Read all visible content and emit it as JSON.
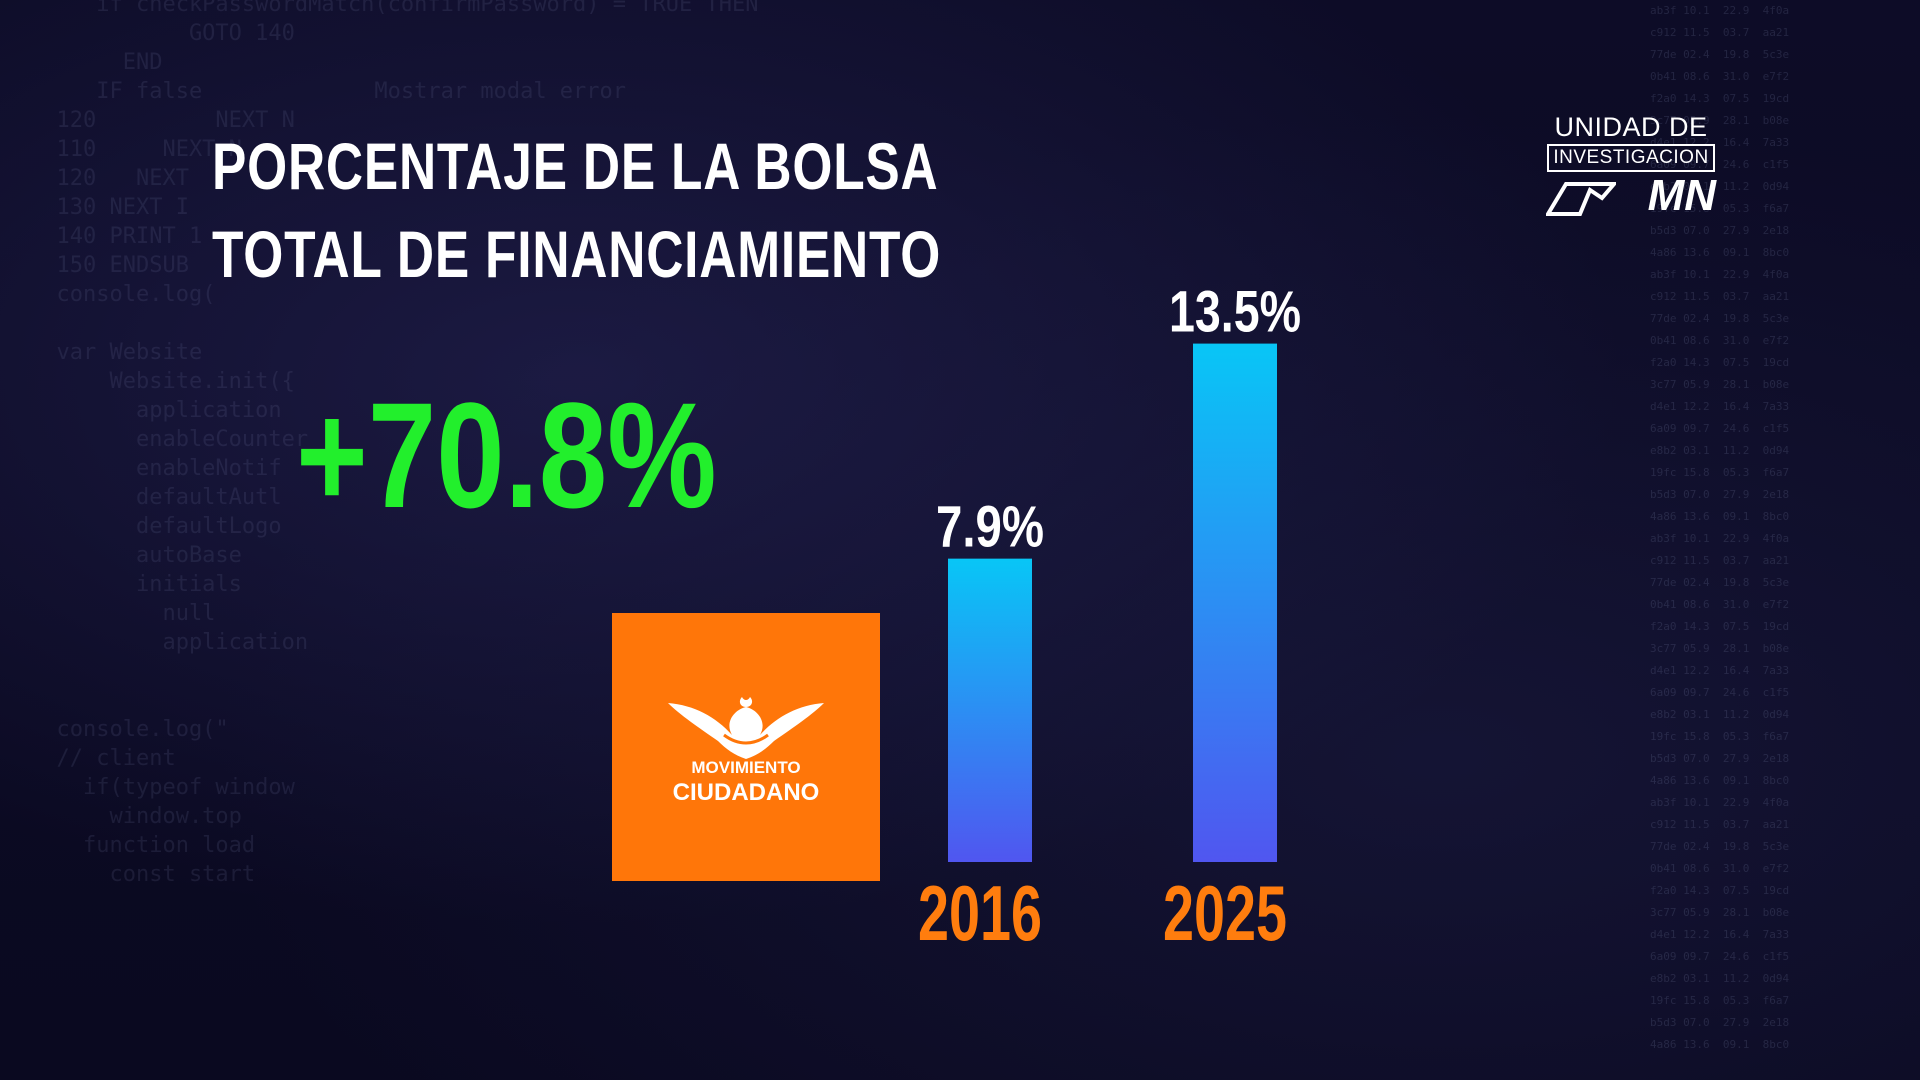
{
  "title": {
    "line1": "PORCENTAJE DE LA BOLSA",
    "line2": "TOTAL DE FINANCIAMIENTO"
  },
  "headline": "+70.8%",
  "party_logo": {
    "line1": "MOVIMIENTO",
    "line2": "CIUDADANO",
    "color": "#ff7609"
  },
  "brand": {
    "line1": "UNIDAD DE",
    "line2": "INVESTIGACION",
    "line3": "MN"
  },
  "colors": {
    "headline": "#22ef2c",
    "year_label": "#ff7d0e",
    "bar_top": "#08c6f6",
    "bar_bottom": "#5056f0"
  },
  "chart_data": {
    "type": "bar",
    "categories": [
      "2016",
      "2025"
    ],
    "values": [
      7.9,
      13.5
    ],
    "value_labels": [
      "7.9%",
      "13.5%"
    ],
    "ylim": [
      0,
      14
    ]
  }
}
